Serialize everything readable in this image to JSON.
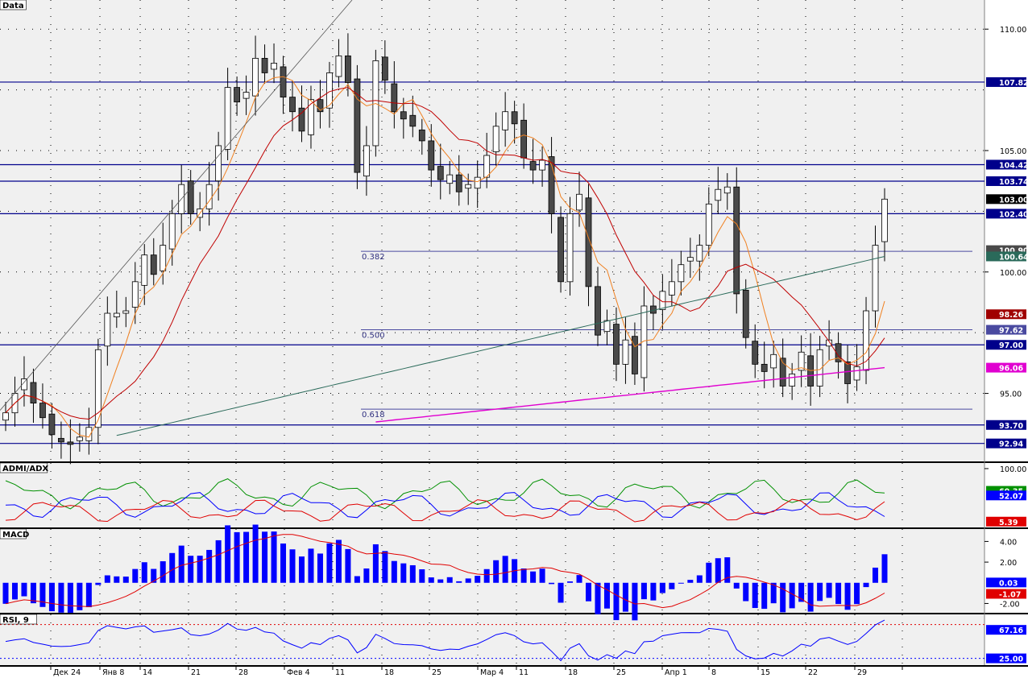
{
  "colors": {
    "background": "#f0f0f0",
    "axis_bg": "#ffffff",
    "level_line": "#00008b",
    "fib_line": "#4a4aa0",
    "candle_up": "#ffffff",
    "candle_down": "#4a4a4a",
    "ma_fast": "#f08020",
    "ma_mid": "#c00000",
    "ma_slow": "#2a6a5a",
    "ma_long": "#e000d0",
    "adx_green": "#009000",
    "adx_red": "#e00000",
    "adx_blue": "#0000ff",
    "macd_hist": "#0000ff",
    "macd_signal": "#e00000",
    "rsi_line": "#0000ff",
    "rsi_upper": "#e00000",
    "rsi_lower": "#0000ff"
  },
  "chart_data": [
    {
      "panel": "Data",
      "type": "candlestick",
      "title": "Data",
      "x_ticks": [
        "Дек 24",
        "Янв 8",
        "14",
        "21",
        "28",
        "Фев 4",
        "11",
        "18",
        "25",
        "Мар 4",
        "11",
        "18",
        "25",
        "Апр 1",
        "8",
        "15",
        "22",
        "29"
      ],
      "y_ticks": [
        "110.00",
        "105.00",
        "100.00",
        "95.00"
      ],
      "ylim": [
        92.2,
        111.2
      ],
      "grid": "dotted",
      "levels": [
        {
          "value": 107.82,
          "label": "107.82"
        },
        {
          "value": 104.42,
          "label": "104.42"
        },
        {
          "value": 103.74,
          "label": "103.74"
        },
        {
          "value": 102.4,
          "label": "102.40"
        },
        {
          "value": 97.0,
          "label": "97.00"
        },
        {
          "value": 93.7,
          "label": "93.70"
        },
        {
          "value": 92.94,
          "label": "92.94"
        }
      ],
      "fib_levels": [
        {
          "label": "0.382",
          "value": 100.85
        },
        {
          "label": "0.500",
          "value": 97.62
        },
        {
          "label": "0.618",
          "value": 94.35
        }
      ],
      "last_values": [
        {
          "label": "103.00",
          "value": 103.0,
          "color": "#000000"
        },
        {
          "label": "100.90",
          "value": 100.9,
          "color": "#4a4a4a"
        },
        {
          "label": "100.64",
          "value": 100.64,
          "color": "#2a6a5a"
        },
        {
          "label": "98.26",
          "value": 98.26,
          "color": "#a00000"
        },
        {
          "label": "97.62",
          "value": 97.62,
          "color": "#4a4aa0"
        },
        {
          "label": "96.06",
          "value": 96.06,
          "color": "#e000d0"
        }
      ]
    },
    {
      "panel": "ADMI/ADX",
      "type": "line",
      "title": "ADMI/ADX",
      "y_ticks": [
        "100.00"
      ],
      "last_values": [
        {
          "label": "60.35",
          "color": "#009000"
        },
        {
          "label": "52.07",
          "color": "#0000ff"
        },
        {
          "label": "5.39",
          "color": "#e00000"
        }
      ]
    },
    {
      "panel": "MACD",
      "type": "bar",
      "title": "MACD",
      "y_ticks": [
        "4.00",
        "2.00",
        "-2.00"
      ],
      "last_values": [
        {
          "label": "0.03",
          "color": "#0000ff"
        },
        {
          "label": "-1.07",
          "color": "#e00000"
        }
      ]
    },
    {
      "panel": "RSI",
      "type": "line",
      "title": "RSI, 9",
      "y_ticks": [],
      "last_values": [
        {
          "label": "67.16",
          "color": "#0000ff"
        },
        {
          "label": "25.00",
          "color": "#0000ff"
        }
      ]
    }
  ]
}
